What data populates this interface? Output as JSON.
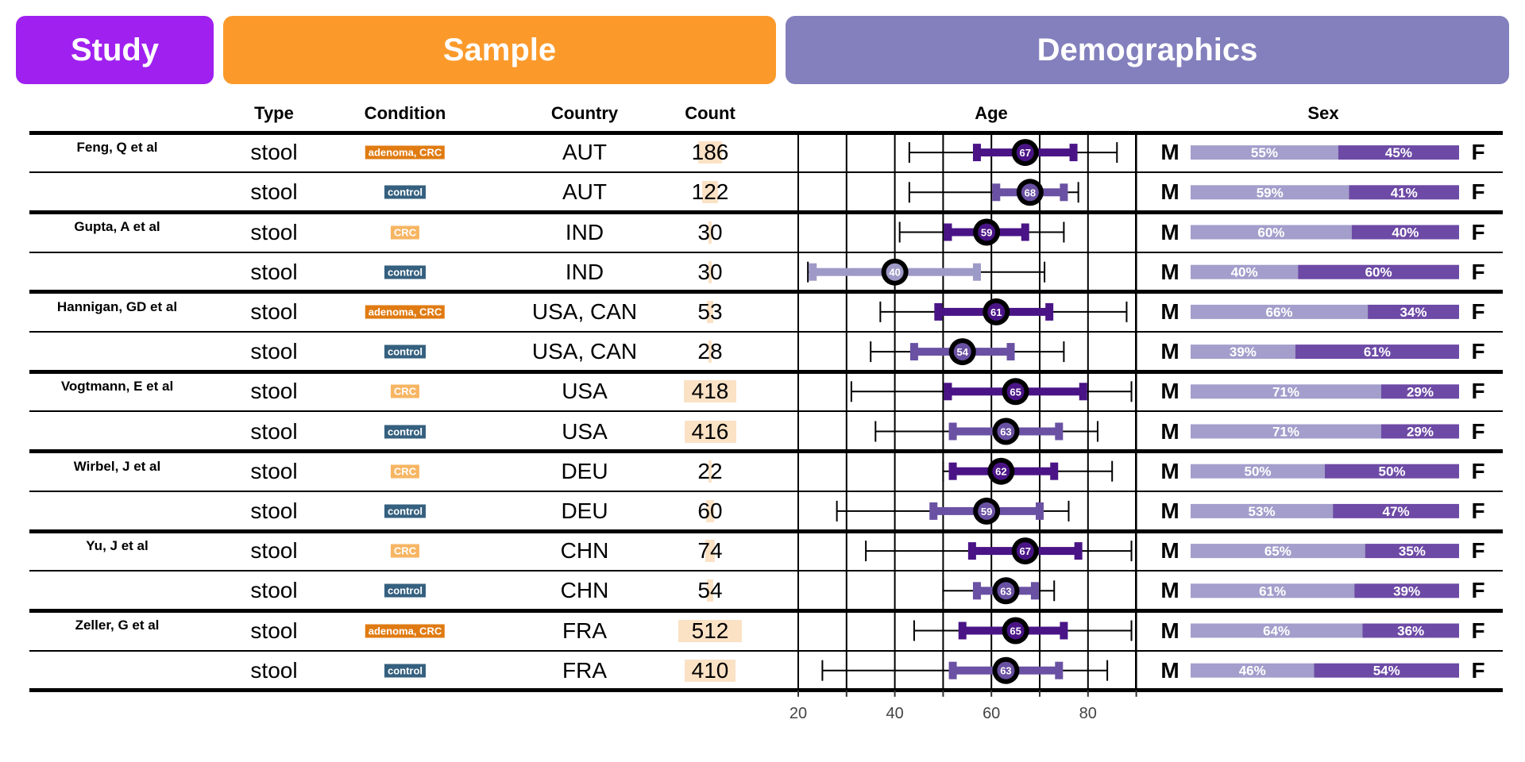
{
  "banners": {
    "study": "Study",
    "sample": "Sample",
    "demographics": "Demographics"
  },
  "columns": {
    "type": "Type",
    "condition": "Condition",
    "country": "Country",
    "count": "Count",
    "age": "Age",
    "sex": "Sex"
  },
  "sex_labels": {
    "male": "M",
    "female": "F"
  },
  "colors": {
    "study": "#a020f0",
    "sample": "#fb9a2b",
    "demographics": "#8380bd",
    "cond_adenoma_crc": "#e07b12",
    "cond_crc": "#f7b563",
    "cond_control": "#35607f",
    "count_bar": "#fbe2c5",
    "male_bar": "#a39ecb",
    "female_bar": "#6d4aa5",
    "age_dark": "#4a1486",
    "age_mid": "#6a51a3",
    "age_light": "#9e9ac8"
  },
  "chart_data": {
    "type": "table",
    "age_axis": {
      "ticks": [
        20,
        40,
        60,
        80
      ],
      "range": [
        20,
        90
      ]
    },
    "studies": [
      {
        "name": "Feng, Q et al",
        "rows": [
          0,
          1
        ]
      },
      {
        "name": "Gupta, A et al",
        "rows": [
          2,
          3
        ]
      },
      {
        "name": "Hannigan, GD et al",
        "rows": [
          4,
          5
        ]
      },
      {
        "name": "Vogtmann, E et al",
        "rows": [
          6,
          7
        ]
      },
      {
        "name": "Wirbel, J et al",
        "rows": [
          8,
          9
        ]
      },
      {
        "name": "Yu, J et al",
        "rows": [
          10,
          11
        ]
      },
      {
        "name": "Zeller, G et al",
        "rows": [
          12,
          13
        ]
      }
    ],
    "rows": [
      {
        "type": "stool",
        "condition": "adenoma, CRC",
        "country": "AUT",
        "count": 186,
        "age_min": 43,
        "age_q1": 57,
        "age_median": 67,
        "age_q3": 77,
        "age_max": 86,
        "male_pct": 55,
        "female_pct": 45,
        "male_label": "55%",
        "female_label": "45%"
      },
      {
        "type": "stool",
        "condition": "control",
        "country": "AUT",
        "count": 122,
        "age_min": 43,
        "age_q1": 61,
        "age_median": 68,
        "age_q3": 75,
        "age_max": 78,
        "male_pct": 59,
        "female_pct": 41,
        "male_label": "59%",
        "female_label": "41%"
      },
      {
        "type": "stool",
        "condition": "CRC",
        "country": "IND",
        "count": 30,
        "age_min": 41,
        "age_q1": 51,
        "age_median": 59,
        "age_q3": 67,
        "age_max": 75,
        "male_pct": 60,
        "female_pct": 40,
        "male_label": "60%",
        "female_label": "40%"
      },
      {
        "type": "stool",
        "condition": "control",
        "country": "IND",
        "count": 30,
        "age_min": 22,
        "age_q1": 23,
        "age_median": 40,
        "age_q3": 57,
        "age_max": 71,
        "male_pct": 40,
        "female_pct": 60,
        "male_label": "40%",
        "female_label": "60%"
      },
      {
        "type": "stool",
        "condition": "adenoma, CRC",
        "country": "USA, CAN",
        "count": 53,
        "age_min": 37,
        "age_q1": 49,
        "age_median": 61,
        "age_q3": 72,
        "age_max": 88,
        "male_pct": 66,
        "female_pct": 34,
        "male_label": "66%",
        "female_label": "34%"
      },
      {
        "type": "stool",
        "condition": "control",
        "country": "USA, CAN",
        "count": 28,
        "age_min": 35,
        "age_q1": 44,
        "age_median": 54,
        "age_q3": 64,
        "age_max": 75,
        "male_pct": 39,
        "female_pct": 61,
        "male_label": "39%",
        "female_label": "61%"
      },
      {
        "type": "stool",
        "condition": "CRC",
        "country": "USA",
        "count": 418,
        "age_min": 31,
        "age_q1": 51,
        "age_median": 65,
        "age_q3": 79,
        "age_max": 89,
        "male_pct": 71,
        "female_pct": 29,
        "male_label": "71%",
        "female_label": "29%"
      },
      {
        "type": "stool",
        "condition": "control",
        "country": "USA",
        "count": 416,
        "age_min": 36,
        "age_q1": 52,
        "age_median": 63,
        "age_q3": 74,
        "age_max": 82,
        "male_pct": 71,
        "female_pct": 29,
        "male_label": "71%",
        "female_label": "29%"
      },
      {
        "type": "stool",
        "condition": "CRC",
        "country": "DEU",
        "count": 22,
        "age_min": 50,
        "age_q1": 52,
        "age_median": 62,
        "age_q3": 73,
        "age_max": 85,
        "male_pct": 50,
        "female_pct": 50,
        "male_label": "50%",
        "female_label": "50%"
      },
      {
        "type": "stool",
        "condition": "control",
        "country": "DEU",
        "count": 60,
        "age_min": 28,
        "age_q1": 48,
        "age_median": 59,
        "age_q3": 70,
        "age_max": 76,
        "male_pct": 53,
        "female_pct": 47,
        "male_label": "53%",
        "female_label": "47%"
      },
      {
        "type": "stool",
        "condition": "CRC",
        "country": "CHN",
        "count": 74,
        "age_min": 34,
        "age_q1": 56,
        "age_median": 67,
        "age_q3": 78,
        "age_max": 89,
        "male_pct": 65,
        "female_pct": 35,
        "male_label": "65%",
        "female_label": "35%"
      },
      {
        "type": "stool",
        "condition": "control",
        "country": "CHN",
        "count": 54,
        "age_min": 50,
        "age_q1": 57,
        "age_median": 63,
        "age_q3": 69,
        "age_max": 73,
        "male_pct": 61,
        "female_pct": 39,
        "male_label": "61%",
        "female_label": "39%"
      },
      {
        "type": "stool",
        "condition": "adenoma, CRC",
        "country": "FRA",
        "count": 512,
        "age_min": 44,
        "age_q1": 54,
        "age_median": 65,
        "age_q3": 75,
        "age_max": 89,
        "male_pct": 64,
        "female_pct": 36,
        "male_label": "64%",
        "female_label": "36%"
      },
      {
        "type": "stool",
        "condition": "control",
        "country": "FRA",
        "count": 410,
        "age_min": 25,
        "age_q1": 52,
        "age_median": 63,
        "age_q3": 74,
        "age_max": 84,
        "male_pct": 46,
        "female_pct": 54,
        "male_label": "46%",
        "female_label": "54%"
      }
    ]
  }
}
